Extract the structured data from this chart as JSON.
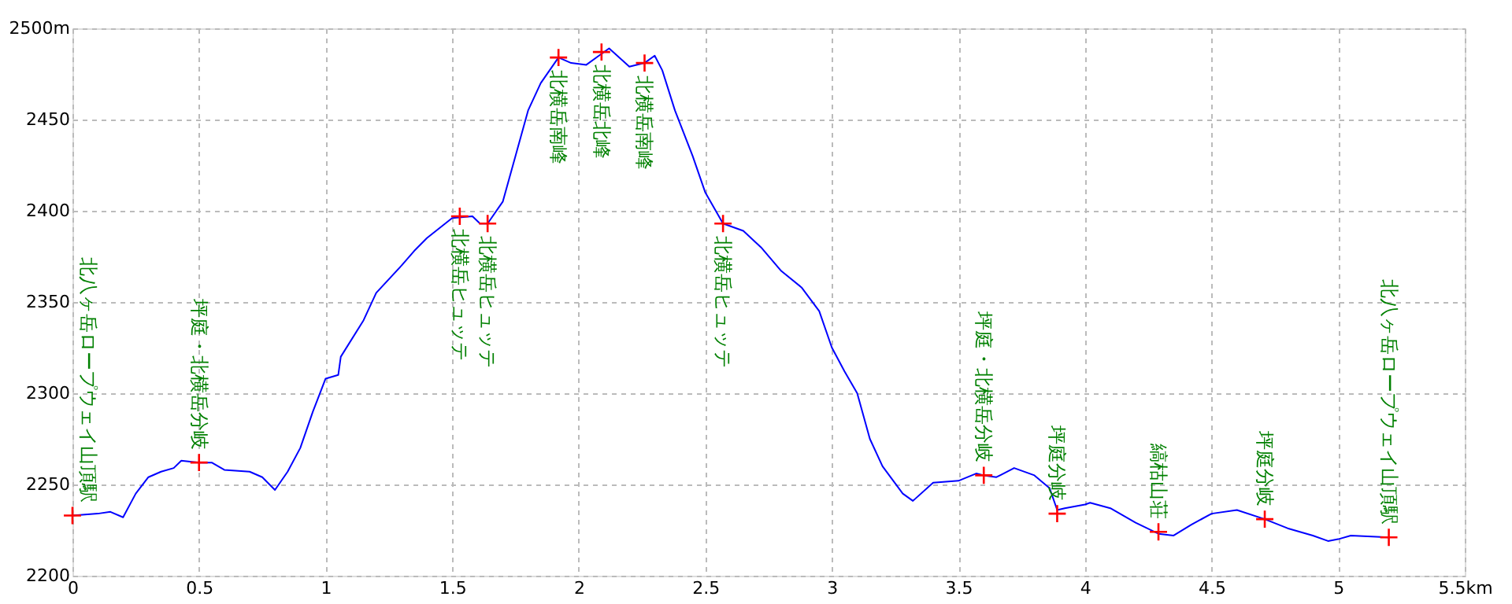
{
  "chart_data": {
    "type": "line",
    "xlim": [
      0,
      5.5
    ],
    "ylim": [
      2200,
      2500
    ],
    "xticks": [
      0,
      0.5,
      1,
      1.5,
      2,
      2.5,
      3,
      3.5,
      4,
      4.5,
      5,
      {
        "value": 5.5,
        "label": "5.5km"
      }
    ],
    "yticks": [
      2200,
      2250,
      2300,
      2350,
      2400,
      2450,
      {
        "value": 2500,
        "label": "2500m"
      }
    ],
    "grid": true,
    "series": [
      {
        "color": "#0000ff",
        "marker": "none",
        "line_style": "solid",
        "x": [
          0,
          0.1,
          0.15,
          0.2,
          0.25,
          0.3,
          0.35,
          0.4,
          0.43,
          0.5,
          0.55,
          0.6,
          0.7,
          0.75,
          0.8,
          0.85,
          0.9,
          0.95,
          1.0,
          1.05,
          1.06,
          1.15,
          1.2,
          1.3,
          1.35,
          1.4,
          1.5,
          1.58,
          1.61,
          1.64,
          1.7,
          1.75,
          1.8,
          1.85,
          1.92,
          1.97,
          2.03,
          2.08,
          2.12,
          2.2,
          2.26,
          2.3,
          2.33,
          2.38,
          2.45,
          2.5,
          2.57,
          2.65,
          2.72,
          2.8,
          2.88,
          2.95,
          3.0,
          3.05,
          3.1,
          3.15,
          3.2,
          3.28,
          3.32,
          3.4,
          3.5,
          3.57,
          3.6,
          3.65,
          3.72,
          3.8,
          3.86,
          3.89,
          3.92,
          4.0,
          4.02,
          4.1,
          4.2,
          4.29,
          4.35,
          4.42,
          4.5,
          4.6,
          4.71,
          4.8,
          4.9,
          4.96,
          5.0,
          5.05,
          5.2
        ],
        "values": [
          2233,
          2234,
          2235,
          2232,
          2245,
          2254,
          2257,
          2259,
          2263,
          2262,
          2262,
          2258,
          2257,
          2254,
          2247,
          2257,
          2270,
          2290,
          2308,
          2310,
          2320,
          2340,
          2355,
          2370,
          2378,
          2385,
          2396,
          2397,
          2393,
          2393,
          2405,
          2430,
          2455,
          2470,
          2484,
          2481,
          2480,
          2485,
          2489,
          2479,
          2481,
          2485,
          2477,
          2455,
          2430,
          2410,
          2393,
          2389,
          2380,
          2367,
          2358,
          2345,
          2325,
          2312,
          2300,
          2275,
          2260,
          2245,
          2241,
          2251,
          2252,
          2256,
          2255,
          2254,
          2259,
          2255,
          2248,
          2236,
          2237,
          2239,
          2240,
          2237,
          2229,
          2223,
          2222,
          2228,
          2234,
          2236,
          2231,
          2226,
          2222,
          2219,
          2220,
          2222,
          2221
        ]
      },
      {
        "type": "scatter",
        "color": "#ff0000",
        "marker": "cross",
        "x": [
          0,
          0.5,
          1.53,
          1.64,
          1.92,
          2.09,
          2.26,
          2.57,
          3.6,
          3.89,
          4.29,
          4.71,
          5.2
        ],
        "values": [
          2233,
          2262,
          2397,
          2393,
          2484,
          2487,
          2481,
          2393,
          2255,
          2234,
          2224,
          2231,
          2221
        ]
      }
    ],
    "annotations": [
      {
        "text": "北八ヶ岳ロープウェイ山頂駅",
        "x": 0,
        "y": 2233
      },
      {
        "text": "坪庭・北横岳分岐",
        "x": 0.5,
        "y": 2262
      },
      {
        "text": "北横岳ヒュッテ",
        "x": 1.53,
        "y": 2397
      },
      {
        "text": "北横岳ヒュッテ",
        "x": 1.64,
        "y": 2393
      },
      {
        "text": "北横岳南峰",
        "x": 1.92,
        "y": 2484
      },
      {
        "text": "北横岳北峰",
        "x": 2.09,
        "y": 2487
      },
      {
        "text": "北横岳南峰",
        "x": 2.26,
        "y": 2481
      },
      {
        "text": "北横岳ヒュッテ",
        "x": 2.57,
        "y": 2393
      },
      {
        "text": "坪庭・北横岳分岐",
        "x": 3.6,
        "y": 2255
      },
      {
        "text": "坪庭分岐",
        "x": 3.89,
        "y": 2234
      },
      {
        "text": "縞枯山荘",
        "x": 4.29,
        "y": 2224
      },
      {
        "text": "坪庭分岐",
        "x": 4.71,
        "y": 2231
      },
      {
        "text": "北八ヶ岳ロープウェイ山頂駅",
        "x": 5.2,
        "y": 2221
      }
    ]
  }
}
